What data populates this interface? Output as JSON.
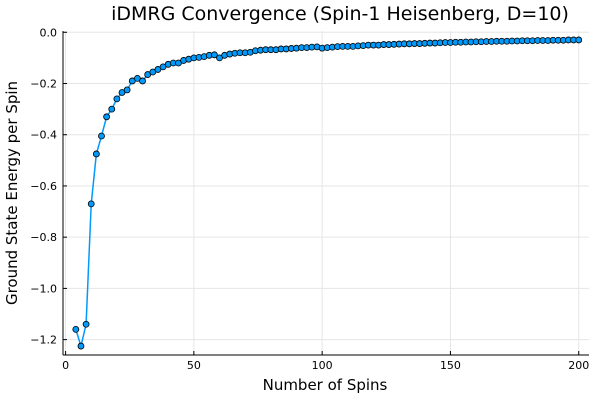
{
  "colors": {
    "series": "#009AFA",
    "marker_edge": "#000000",
    "grid": "#E6E6E6",
    "axis": "#000000",
    "background": "#FFFFFF"
  },
  "chart_data": {
    "type": "line",
    "title": "iDMRG Convergence (Spin-1 Heisenberg, D=10)",
    "xlabel": "Number of Spins",
    "ylabel": "Ground State Energy per Spin",
    "xlim": [
      -1,
      204
    ],
    "ylim": [
      -1.26,
      0.005
    ],
    "xticks": [
      0,
      50,
      100,
      150,
      200
    ],
    "yticks": [
      0.0,
      -0.2,
      -0.4,
      -0.6,
      -0.8,
      -1.0,
      -1.2
    ],
    "xtick_labels": [
      "0",
      "50",
      "100",
      "150",
      "200"
    ],
    "ytick_labels": [
      "0.0",
      "−0.2",
      "−0.4",
      "−0.6",
      "−0.8",
      "−1.0",
      "−1.2"
    ],
    "grid": true,
    "legend": "none",
    "markers": "circle",
    "x": [
      4,
      6,
      8,
      10,
      12,
      14,
      16,
      18,
      20,
      22,
      24,
      26,
      28,
      30,
      32,
      34,
      36,
      38,
      40,
      42,
      44,
      46,
      48,
      50,
      52,
      54,
      56,
      58,
      60,
      62,
      64,
      66,
      68,
      70,
      72,
      74,
      76,
      78,
      80,
      82,
      84,
      86,
      88,
      90,
      92,
      94,
      96,
      98,
      100,
      102,
      104,
      106,
      108,
      110,
      112,
      114,
      116,
      118,
      120,
      122,
      124,
      126,
      128,
      130,
      132,
      134,
      136,
      138,
      140,
      142,
      144,
      146,
      148,
      150,
      152,
      154,
      156,
      158,
      160,
      162,
      164,
      166,
      168,
      170,
      172,
      174,
      176,
      178,
      180,
      182,
      184,
      186,
      188,
      190,
      192,
      194,
      196,
      198,
      200
    ],
    "y": [
      -1.16,
      -1.225,
      -1.14,
      -0.67,
      -0.475,
      -0.405,
      -0.33,
      -0.3,
      -0.26,
      -0.235,
      -0.225,
      -0.19,
      -0.18,
      -0.19,
      -0.165,
      -0.155,
      -0.145,
      -0.135,
      -0.125,
      -0.12,
      -0.12,
      -0.11,
      -0.105,
      -0.1,
      -0.098,
      -0.095,
      -0.09,
      -0.088,
      -0.1,
      -0.09,
      -0.085,
      -0.082,
      -0.08,
      -0.08,
      -0.078,
      -0.072,
      -0.07,
      -0.068,
      -0.068,
      -0.068,
      -0.065,
      -0.065,
      -0.063,
      -0.062,
      -0.06,
      -0.06,
      -0.058,
      -0.057,
      -0.062,
      -0.06,
      -0.058,
      -0.056,
      -0.055,
      -0.055,
      -0.055,
      -0.053,
      -0.052,
      -0.05,
      -0.05,
      -0.05,
      -0.048,
      -0.048,
      -0.047,
      -0.046,
      -0.045,
      -0.045,
      -0.044,
      -0.044,
      -0.043,
      -0.042,
      -0.042,
      -0.041,
      -0.04,
      -0.04,
      -0.039,
      -0.039,
      -0.038,
      -0.038,
      -0.037,
      -0.037,
      -0.036,
      -0.036,
      -0.035,
      -0.035,
      -0.035,
      -0.034,
      -0.034,
      -0.033,
      -0.033,
      -0.033,
      -0.032,
      -0.032,
      -0.032,
      -0.031,
      -0.031,
      -0.031,
      -0.03,
      -0.03,
      -0.03
    ]
  }
}
